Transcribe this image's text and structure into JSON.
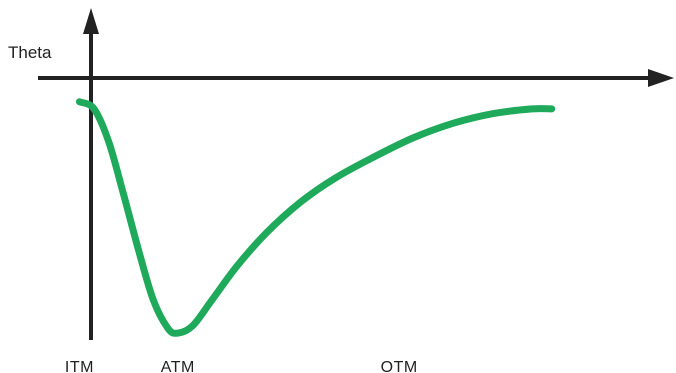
{
  "chart_data": {
    "type": "line",
    "ylabel": "Theta",
    "xlabel": "",
    "x_tick_labels": [
      {
        "label": "ITM",
        "x": 0.0
      },
      {
        "label": "ATM",
        "x": 0.2
      },
      {
        "label": "OTM",
        "x": 0.65
      }
    ],
    "xlim": [
      -0.08,
      1.18
    ],
    "ylim": [
      -1.05,
      0.25
    ],
    "series": [
      {
        "color": "#1fa95b",
        "x": [
          0.0,
          0.03,
          0.06,
          0.09,
          0.12,
          0.15,
          0.18,
          0.2,
          0.23,
          0.27,
          0.32,
          0.38,
          0.45,
          0.52,
          0.6,
          0.68,
          0.76,
          0.84,
          0.92,
          0.96
        ],
        "y": [
          -0.03,
          -0.06,
          -0.2,
          -0.42,
          -0.65,
          -0.86,
          -0.98,
          -1.0,
          -0.97,
          -0.86,
          -0.72,
          -0.58,
          -0.45,
          -0.35,
          -0.26,
          -0.18,
          -0.12,
          -0.08,
          -0.06,
          -0.06
        ]
      }
    ]
  }
}
